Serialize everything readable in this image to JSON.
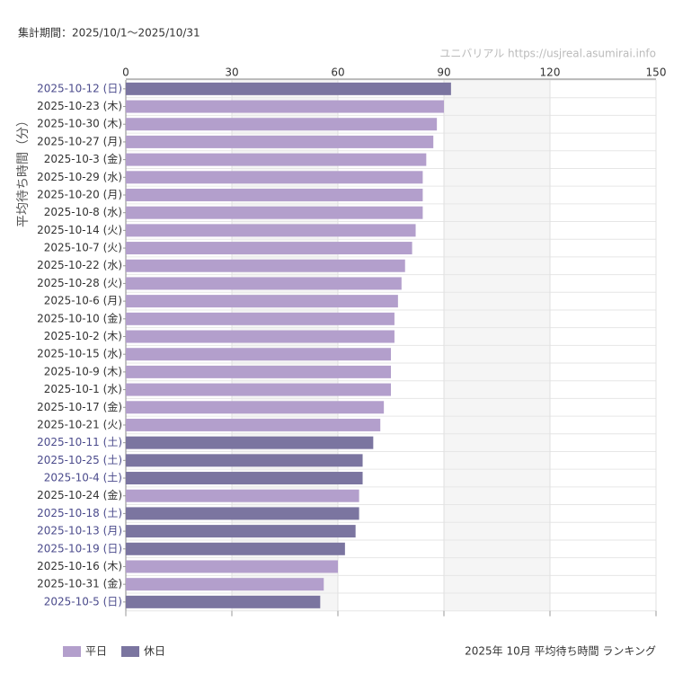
{
  "chart_data": {
    "type": "hbar",
    "subtitle": "集計期間：2025/10/1〜2025/10/31",
    "source": "ユニバリアル  https://usjreal.asumirai.info",
    "title": "2025年 10月 平均待ち時間 ランキング",
    "ylabel": "平均待ち時間（分）",
    "categories": [
      "2025-10-12 (日)",
      "2025-10-23 (木)",
      "2025-10-30 (木)",
      "2025-10-27 (月)",
      "2025-10-3 (金)",
      "2025-10-29 (水)",
      "2025-10-20 (月)",
      "2025-10-8 (水)",
      "2025-10-14 (火)",
      "2025-10-7 (火)",
      "2025-10-22 (水)",
      "2025-10-28 (火)",
      "2025-10-6 (月)",
      "2025-10-10 (金)",
      "2025-10-2 (木)",
      "2025-10-15 (水)",
      "2025-10-9 (木)",
      "2025-10-1 (水)",
      "2025-10-17 (金)",
      "2025-10-21 (火)",
      "2025-10-11 (土)",
      "2025-10-25 (土)",
      "2025-10-4 (土)",
      "2025-10-24 (金)",
      "2025-10-18 (土)",
      "2025-10-13 (月)",
      "2025-10-19 (日)",
      "2025-10-16 (木)",
      "2025-10-31 (金)",
      "2025-10-5 (日)"
    ],
    "series": [
      {
        "name": "平日",
        "color": "#b39fcc",
        "values": [
          null,
          90,
          88,
          87,
          85,
          84,
          84,
          84,
          82,
          81,
          79,
          78,
          77,
          76,
          76,
          75,
          75,
          75,
          73,
          72,
          null,
          null,
          null,
          66,
          null,
          null,
          null,
          60,
          56,
          null
        ]
      },
      {
        "name": "休日",
        "color": "#7b75a0",
        "values": [
          92,
          null,
          null,
          null,
          null,
          null,
          null,
          null,
          null,
          null,
          null,
          null,
          null,
          null,
          null,
          null,
          null,
          null,
          null,
          null,
          70,
          67,
          67,
          null,
          66,
          65,
          62,
          null,
          null,
          55
        ]
      }
    ],
    "xlim": [
      0,
      150
    ],
    "xticks": [
      0,
      30,
      60,
      90,
      120,
      150
    ],
    "grid": true
  }
}
